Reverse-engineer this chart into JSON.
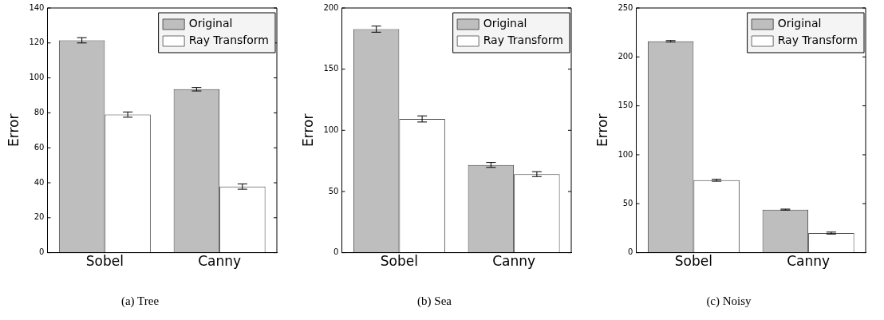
{
  "chart_data": [
    {
      "type": "bar",
      "title": "(a) Tree",
      "ylabel": "Error",
      "categories": [
        "Sobel",
        "Canny"
      ],
      "ylim": [
        0,
        140
      ],
      "yticks": [
        0,
        20,
        40,
        60,
        80,
        100,
        120,
        140
      ],
      "grid": false,
      "legend": "top right",
      "series": [
        {
          "name": "Original",
          "color": "#bebebe",
          "values": [
            121.5,
            93.5
          ],
          "errors": [
            1.5,
            1
          ]
        },
        {
          "name": "Ray Transform",
          "color": "#ffffff",
          "values": [
            79,
            37.8
          ],
          "errors": [
            1.5,
            1.5
          ]
        }
      ]
    },
    {
      "type": "bar",
      "title": "(b) Sea",
      "ylabel": "Error",
      "categories": [
        "Sobel",
        "Canny"
      ],
      "ylim": [
        0,
        200
      ],
      "yticks": [
        0,
        50,
        100,
        150,
        200
      ],
      "grid": false,
      "legend": "top right",
      "series": [
        {
          "name": "Original",
          "color": "#bebebe",
          "values": [
            182.7,
            71.7
          ],
          "errors": [
            2.5,
            2
          ]
        },
        {
          "name": "Ray Transform",
          "color": "#ffffff",
          "values": [
            109.3,
            64.2
          ],
          "errors": [
            2.5,
            2
          ]
        }
      ]
    },
    {
      "type": "bar",
      "title": "(c) Noisy",
      "ylabel": "Error",
      "categories": [
        "Sobel",
        "Canny"
      ],
      "ylim": [
        0,
        250
      ],
      "yticks": [
        0,
        50,
        100,
        150,
        200,
        250
      ],
      "grid": false,
      "legend": "top right",
      "series": [
        {
          "name": "Original",
          "color": "#bebebe",
          "values": [
            216,
            44
          ],
          "errors": [
            0.8,
            0.5
          ]
        },
        {
          "name": "Ray Transform",
          "color": "#ffffff",
          "values": [
            74,
            20
          ],
          "errors": [
            1,
            1
          ]
        }
      ]
    }
  ]
}
